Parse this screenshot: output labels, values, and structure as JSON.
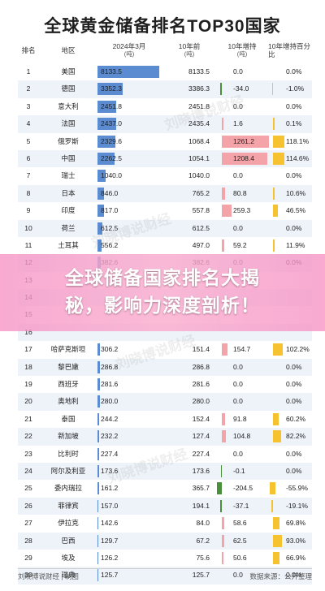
{
  "title": "全球黄金储备排名TOP30国家",
  "headers": {
    "rank": "排名",
    "region": "地区",
    "now": "2024年3月",
    "now_unit": "(吨)",
    "prev": "10年前",
    "prev_unit": "(吨)",
    "inc": "10年增持",
    "inc_unit": "(吨)",
    "pct": "10年增持百分比"
  },
  "rows": [
    {
      "rank": "1",
      "region": "美国",
      "now": "8133.5",
      "prev": "8133.5",
      "inc": "0.0",
      "pct": "0.0%"
    },
    {
      "rank": "2",
      "region": "德国",
      "now": "3352.3",
      "prev": "3386.3",
      "inc": "-34.0",
      "pct": "-1.0%"
    },
    {
      "rank": "3",
      "region": "意大利",
      "now": "2451.8",
      "prev": "2451.8",
      "inc": "0.0",
      "pct": "0.0%"
    },
    {
      "rank": "4",
      "region": "法国",
      "now": "2437.0",
      "prev": "2435.4",
      "inc": "1.6",
      "pct": "0.1%"
    },
    {
      "rank": "5",
      "region": "俄罗斯",
      "now": "2329.6",
      "prev": "1068.4",
      "inc": "1261.2",
      "pct": "118.1%"
    },
    {
      "rank": "6",
      "region": "中国",
      "now": "2262.5",
      "prev": "1054.1",
      "inc": "1208.4",
      "pct": "114.6%"
    },
    {
      "rank": "7",
      "region": "瑞士",
      "now": "1040.0",
      "prev": "1040.0",
      "inc": "0.0",
      "pct": "0.0%"
    },
    {
      "rank": "8",
      "region": "日本",
      "now": "846.0",
      "prev": "765.2",
      "inc": "80.8",
      "pct": "10.6%"
    },
    {
      "rank": "9",
      "region": "印度",
      "now": "817.0",
      "prev": "557.8",
      "inc": "259.3",
      "pct": "46.5%"
    },
    {
      "rank": "10",
      "region": "荷兰",
      "now": "612.5",
      "prev": "612.5",
      "inc": "0.0",
      "pct": "0.0%"
    },
    {
      "rank": "11",
      "region": "土耳其",
      "now": "556.2",
      "prev": "497.0",
      "inc": "59.2",
      "pct": "11.9%"
    },
    {
      "rank": "12",
      "region": "",
      "now": "382.6",
      "prev": "382.6",
      "inc": "0.0",
      "pct": "0.0%"
    },
    {
      "rank": "13",
      "region": "",
      "now": "",
      "prev": "",
      "inc": "",
      "pct": ""
    },
    {
      "rank": "14",
      "region": "",
      "now": "",
      "prev": "",
      "inc": "",
      "pct": ""
    },
    {
      "rank": "15",
      "region": "",
      "now": "",
      "prev": "",
      "inc": "",
      "pct": ""
    },
    {
      "rank": "16",
      "region": "",
      "now": "",
      "prev": "",
      "inc": "",
      "pct": ""
    },
    {
      "rank": "17",
      "region": "哈萨克斯坦",
      "now": "306.2",
      "prev": "151.4",
      "inc": "154.7",
      "pct": "102.2%"
    },
    {
      "rank": "18",
      "region": "黎巴嫩",
      "now": "286.8",
      "prev": "286.8",
      "inc": "0.0",
      "pct": "0.0%"
    },
    {
      "rank": "19",
      "region": "西班牙",
      "now": "281.6",
      "prev": "281.6",
      "inc": "0.0",
      "pct": "0.0%"
    },
    {
      "rank": "20",
      "region": "奥地利",
      "now": "280.0",
      "prev": "280.0",
      "inc": "0.0",
      "pct": "0.0%"
    },
    {
      "rank": "21",
      "region": "泰国",
      "now": "244.2",
      "prev": "152.4",
      "inc": "91.8",
      "pct": "60.2%"
    },
    {
      "rank": "22",
      "region": "新加坡",
      "now": "232.2",
      "prev": "127.4",
      "inc": "104.8",
      "pct": "82.2%"
    },
    {
      "rank": "23",
      "region": "比利时",
      "now": "227.4",
      "prev": "227.4",
      "inc": "0.0",
      "pct": "0.0%"
    },
    {
      "rank": "24",
      "region": "阿尔及利亚",
      "now": "173.6",
      "prev": "173.6",
      "inc": "-0.1",
      "pct": "0.0%"
    },
    {
      "rank": "25",
      "region": "委内瑞拉",
      "now": "161.2",
      "prev": "365.7",
      "inc": "-204.5",
      "pct": "-55.9%"
    },
    {
      "rank": "26",
      "region": "菲律宾",
      "now": "157.0",
      "prev": "194.1",
      "inc": "-37.1",
      "pct": "-19.1%"
    },
    {
      "rank": "27",
      "region": "伊拉克",
      "now": "142.6",
      "prev": "84.0",
      "inc": "58.6",
      "pct": "69.8%"
    },
    {
      "rank": "28",
      "region": "巴西",
      "now": "129.7",
      "prev": "67.2",
      "inc": "62.5",
      "pct": "93.0%"
    },
    {
      "rank": "29",
      "region": "埃及",
      "now": "126.2",
      "prev": "75.6",
      "inc": "50.6",
      "pct": "66.9%"
    },
    {
      "rank": "30",
      "region": "瑞典",
      "now": "125.7",
      "prev": "125.7",
      "inc": "0.0",
      "pct": "0.0%"
    }
  ],
  "banner": {
    "line1": "全球储备国家排名大揭",
    "line2": "秘，影响力深度剖析！"
  },
  "watermark": "刘晓博说财经",
  "footer": {
    "left": "刘晓博说财经 | 制图",
    "right": "数据来源：公开整理"
  },
  "colors": {
    "now_bar": "#5b8bd0",
    "inc_pos": "#f4a3a8",
    "inc_neg": "#4a8f3a",
    "pct_bar": "#f6c230",
    "alt_row": "#eef3fa"
  }
}
